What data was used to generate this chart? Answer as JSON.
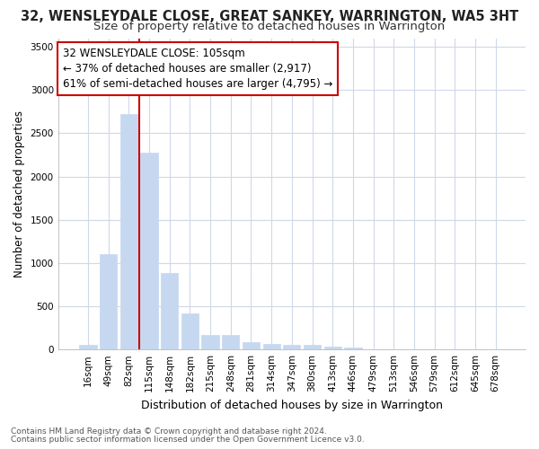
{
  "title": "32, WENSLEYDALE CLOSE, GREAT SANKEY, WARRINGTON, WA5 3HT",
  "subtitle": "Size of property relative to detached houses in Warrington",
  "xlabel": "Distribution of detached houses by size in Warrington",
  "ylabel": "Number of detached properties",
  "categories": [
    "16sqm",
    "49sqm",
    "82sqm",
    "115sqm",
    "148sqm",
    "182sqm",
    "215sqm",
    "248sqm",
    "281sqm",
    "314sqm",
    "347sqm",
    "380sqm",
    "413sqm",
    "446sqm",
    "479sqm",
    "513sqm",
    "546sqm",
    "579sqm",
    "612sqm",
    "645sqm",
    "678sqm"
  ],
  "values": [
    50,
    1100,
    2720,
    2280,
    880,
    415,
    170,
    165,
    90,
    60,
    50,
    50,
    30,
    25,
    0,
    0,
    0,
    0,
    0,
    0,
    0
  ],
  "bar_color": "#c5d8f0",
  "bar_edge_color": "#c5d8f0",
  "vline_x": 3,
  "vline_color": "#cc0000",
  "annotation_text": "32 WENSLEYDALE CLOSE: 105sqm\n← 37% of detached houses are smaller (2,917)\n61% of semi-detached houses are larger (4,795) →",
  "annotation_box_edge": "#cc0000",
  "ylim": [
    0,
    3600
  ],
  "yticks": [
    0,
    500,
    1000,
    1500,
    2000,
    2500,
    3000,
    3500
  ],
  "bg_color": "#ffffff",
  "plot_bg_color": "#ffffff",
  "grid_color": "#d0d8e8",
  "footer1": "Contains HM Land Registry data © Crown copyright and database right 2024.",
  "footer2": "Contains public sector information licensed under the Open Government Licence v3.0.",
  "title_fontsize": 10.5,
  "subtitle_fontsize": 9.5,
  "xlabel_fontsize": 9,
  "ylabel_fontsize": 8.5,
  "tick_fontsize": 7.5,
  "annotation_fontsize": 8.5,
  "footer_fontsize": 6.5
}
